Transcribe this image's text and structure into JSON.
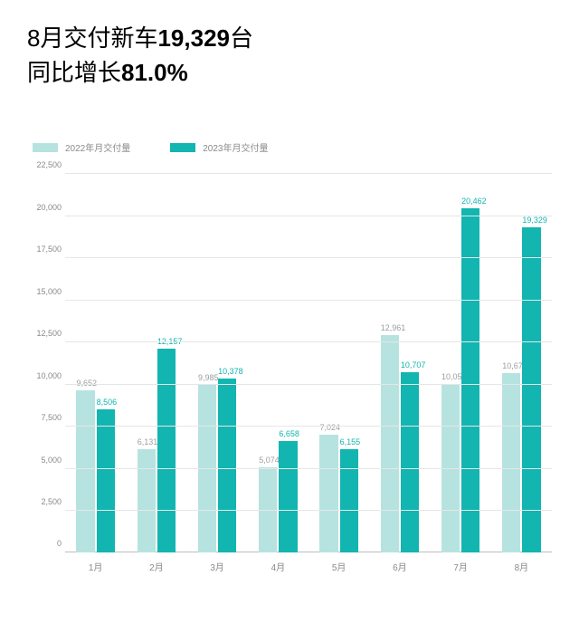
{
  "headline": {
    "line1_pre": "8月交付新车",
    "line1_bold": "19,329",
    "line1_post": "台",
    "line2_pre": "同比增长",
    "line2_bold": "81.0%"
  },
  "chart": {
    "type": "bar",
    "background_color": "#ffffff",
    "grid_color": "#e6e6e6",
    "axis_color": "#bdbdbd",
    "ylim": [
      0,
      22500
    ],
    "ytick_step": 2500,
    "yticks": [
      "0",
      "2,500",
      "5,000",
      "7,500",
      "10,000",
      "12,500",
      "15,000",
      "17,500",
      "20,000",
      "22,500"
    ],
    "ylabel_fontsize": 9,
    "xlabel_fontsize": 10,
    "barlabel_fontsize": 9,
    "bar_width_pct": 30,
    "group_gap_pct": 3,
    "series": [
      {
        "name": "2022年月交付量",
        "color": "#b6e3e0",
        "label_color": "#9aa0a0"
      },
      {
        "name": "2023年月交付量",
        "color": "#12b5b0",
        "label_color": "#12b5b0"
      }
    ],
    "categories": [
      "1月",
      "2月",
      "3月",
      "4月",
      "5月",
      "6月",
      "7月",
      "8月"
    ],
    "data": [
      {
        "s0": 9652,
        "s0_label": "9,652",
        "s1": 8506,
        "s1_label": "8,506"
      },
      {
        "s0": 6131,
        "s0_label": "6,131",
        "s1": 12157,
        "s1_label": "12,157"
      },
      {
        "s0": 9985,
        "s0_label": "9,985",
        "s1": 10378,
        "s1_label": "10,378"
      },
      {
        "s0": 5074,
        "s0_label": "5,074",
        "s1": 6658,
        "s1_label": "6,658"
      },
      {
        "s0": 7024,
        "s0_label": "7,024",
        "s1": 6155,
        "s1_label": "6,155"
      },
      {
        "s0": 12961,
        "s0_label": "12,961",
        "s1": 10707,
        "s1_label": "10,707"
      },
      {
        "s0": 10052,
        "s0_label": "10,052",
        "s1": 20462,
        "s1_label": "20,462"
      },
      {
        "s0": 10677,
        "s0_label": "10,677",
        "s1": 19329,
        "s1_label": "19,329"
      }
    ]
  }
}
